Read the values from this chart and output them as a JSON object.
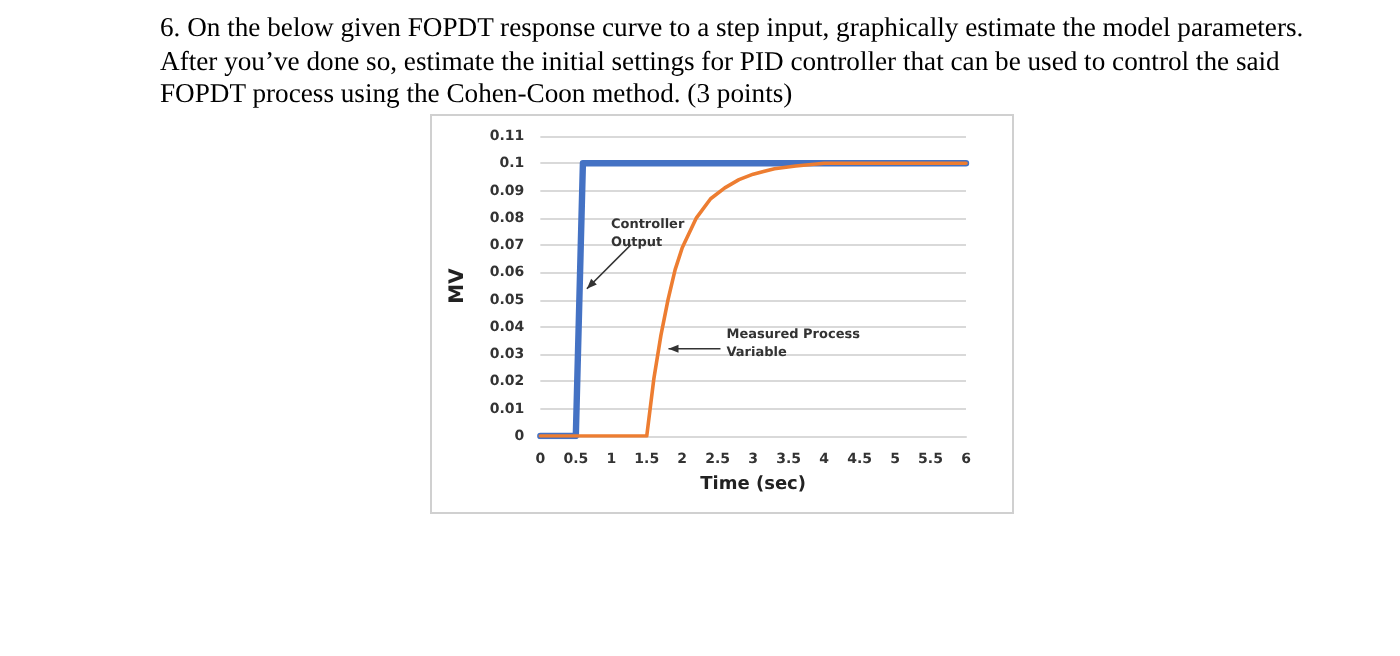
{
  "chart_data": {
    "type": "line",
    "title": "6. On the below given FOPDT response curve to a step input, graphically estimate the model parameters. After you’ve done so, estimate the initial settings for PID controller that can be used to control the said FOPDT process using the Cohen-Coon method. (3 points)",
    "xlabel": "Time (sec)",
    "ylabel": "MV",
    "series": [
      {
        "color": "#4472c4",
        "x": [
          0,
          0.5,
          0.6,
          6
        ],
        "values": [
          0,
          0,
          0.1,
          0.1
        ]
      },
      {
        "color": "#ed7d31",
        "x": [
          0,
          1.5,
          1.6,
          1.7,
          1.8,
          1.9,
          2,
          2.2,
          2.4,
          2.6,
          2.8,
          3,
          3.3,
          3.6,
          4,
          5,
          6
        ],
        "values": [
          0,
          0,
          0.021,
          0.037,
          0.05,
          0.061,
          0.069,
          0.08,
          0.087,
          0.091,
          0.094,
          0.096,
          0.098,
          0.099,
          0.1,
          0.1,
          0.1
        ]
      }
    ],
    "annotations": [
      {
        "text": "Controller Output",
        "x": 0.6,
        "y": 0.054
      },
      {
        "text": "Measured Process Variable",
        "x": 1.75,
        "y": 0.032
      }
    ],
    "xlim": [
      0,
      6
    ],
    "xticks": [
      0,
      0.5,
      1,
      1.5,
      2,
      2.5,
      3,
      3.5,
      4,
      4.5,
      5,
      5.5,
      6
    ],
    "ylim": [
      0,
      0.11
    ],
    "yticks": [
      0,
      0.01,
      0.02,
      0.03,
      0.04,
      0.05,
      0.06,
      0.07,
      0.08,
      0.09,
      0.1,
      0.11
    ],
    "grid": "y",
    "marker": "none",
    "line_style": "solid"
  }
}
